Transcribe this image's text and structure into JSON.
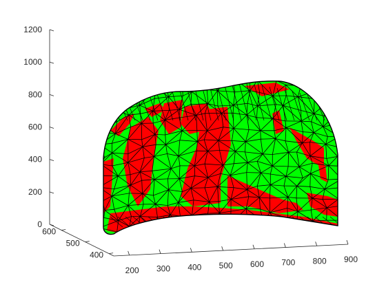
{
  "chart_data": {
    "type": "surface3d",
    "title": "",
    "xlabel": "",
    "ylabel": "",
    "zlabel": "",
    "x_ticks": [
      "200",
      "300",
      "400",
      "500",
      "600",
      "700",
      "800",
      "900"
    ],
    "y_ticks": [
      "400",
      "500",
      "600"
    ],
    "z_ticks": [
      "0",
      "200",
      "400",
      "600",
      "800",
      "1000",
      "1200"
    ],
    "xlim": [
      150,
      900
    ],
    "ylim": [
      380,
      650
    ],
    "zlim": [
      0,
      1200
    ],
    "grid": false,
    "face_colors": {
      "positive": "#00ff00",
      "negative": "#ff0000"
    },
    "edge_color": "#000000",
    "background": "#ffffff",
    "description_of_mesh": "closed triangulated mesh, faces colored green or red"
  }
}
